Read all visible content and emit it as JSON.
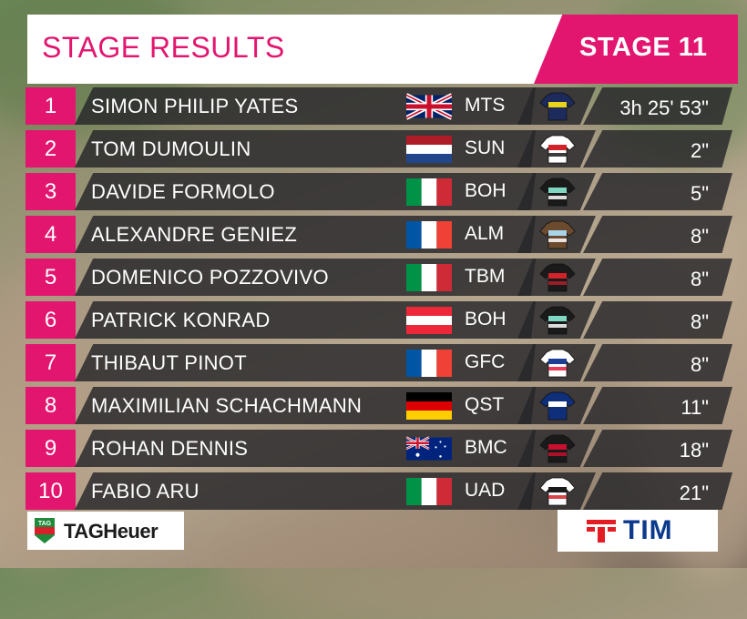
{
  "header": {
    "title": "STAGE RESULTS",
    "stage_label": "STAGE 11"
  },
  "results": [
    {
      "rank": "1",
      "name": "SIMON PHILIP YATES",
      "flag": "gb-flag",
      "team": "MTS",
      "jersey": "mts-jersey",
      "time": "3h 25' 53\""
    },
    {
      "rank": "2",
      "name": "TOM DUMOULIN",
      "flag": "nl-flag",
      "team": "SUN",
      "jersey": "sun-jersey",
      "time": "2\""
    },
    {
      "rank": "3",
      "name": "DAVIDE FORMOLO",
      "flag": "it-flag",
      "team": "BOH",
      "jersey": "boh-jersey",
      "time": "5\""
    },
    {
      "rank": "4",
      "name": "ALEXANDRE GENIEZ",
      "flag": "fr-flag",
      "team": "ALM",
      "jersey": "alm-jersey",
      "time": "8\""
    },
    {
      "rank": "5",
      "name": "DOMENICO POZZOVIVO",
      "flag": "it-flag",
      "team": "TBM",
      "jersey": "tbm-jersey",
      "time": "8\""
    },
    {
      "rank": "6",
      "name": "PATRICK KONRAD",
      "flag": "at-flag",
      "team": "BOH",
      "jersey": "boh-jersey",
      "time": "8\""
    },
    {
      "rank": "7",
      "name": "THIBAUT PINOT",
      "flag": "fr-flag",
      "team": "GFC",
      "jersey": "gfc-jersey",
      "time": "8\""
    },
    {
      "rank": "8",
      "name": "MAXIMILIAN SCHACHMANN",
      "flag": "de-flag",
      "team": "QST",
      "jersey": "qst-jersey",
      "time": "11\""
    },
    {
      "rank": "9",
      "name": "ROHAN DENNIS",
      "flag": "au-flag",
      "team": "BMC",
      "jersey": "bmc-jersey",
      "time": "18\""
    },
    {
      "rank": "10",
      "name": "FABIO ARU",
      "flag": "it-flag",
      "team": "UAD",
      "jersey": "uad-jersey",
      "time": "21\""
    }
  ],
  "sponsors": {
    "left": {
      "logo_text": "TAG",
      "brand": "TAGHeuer",
      "icon": "tag-heuer-shield-icon"
    },
    "right": {
      "brand": "TIM",
      "icon": "tim-logo-icon"
    }
  },
  "colors": {
    "accent_pink": "#e3166f",
    "row_bg": "#26262a",
    "title_pink": "#e2156f",
    "tim_blue": "#0b3a8c"
  }
}
